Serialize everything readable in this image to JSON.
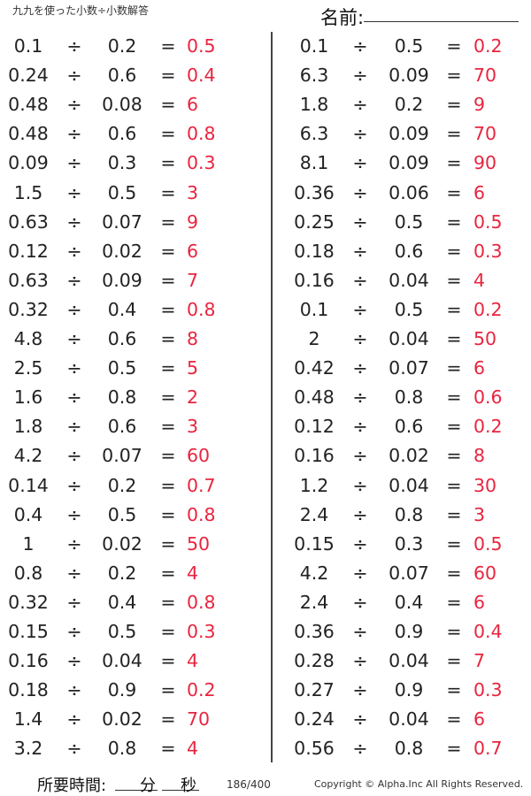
{
  "header": {
    "title": "九九を使った小数÷小数解答",
    "name_label": "名前:"
  },
  "left": [
    {
      "a": "0.1",
      "op": "÷",
      "b": "0.2",
      "eq": "=",
      "ans": "0.5"
    },
    {
      "a": "0.24",
      "op": "÷",
      "b": "0.6",
      "eq": "=",
      "ans": "0.4"
    },
    {
      "a": "0.48",
      "op": "÷",
      "b": "0.08",
      "eq": "=",
      "ans": "6"
    },
    {
      "a": "0.48",
      "op": "÷",
      "b": "0.6",
      "eq": "=",
      "ans": "0.8"
    },
    {
      "a": "0.09",
      "op": "÷",
      "b": "0.3",
      "eq": "=",
      "ans": "0.3"
    },
    {
      "a": "1.5",
      "op": "÷",
      "b": "0.5",
      "eq": "=",
      "ans": "3"
    },
    {
      "a": "0.63",
      "op": "÷",
      "b": "0.07",
      "eq": "=",
      "ans": "9"
    },
    {
      "a": "0.12",
      "op": "÷",
      "b": "0.02",
      "eq": "=",
      "ans": "6"
    },
    {
      "a": "0.63",
      "op": "÷",
      "b": "0.09",
      "eq": "=",
      "ans": "7"
    },
    {
      "a": "0.32",
      "op": "÷",
      "b": "0.4",
      "eq": "=",
      "ans": "0.8"
    },
    {
      "a": "4.8",
      "op": "÷",
      "b": "0.6",
      "eq": "=",
      "ans": "8"
    },
    {
      "a": "2.5",
      "op": "÷",
      "b": "0.5",
      "eq": "=",
      "ans": "5"
    },
    {
      "a": "1.6",
      "op": "÷",
      "b": "0.8",
      "eq": "=",
      "ans": "2"
    },
    {
      "a": "1.8",
      "op": "÷",
      "b": "0.6",
      "eq": "=",
      "ans": "3"
    },
    {
      "a": "4.2",
      "op": "÷",
      "b": "0.07",
      "eq": "=",
      "ans": "60"
    },
    {
      "a": "0.14",
      "op": "÷",
      "b": "0.2",
      "eq": "=",
      "ans": "0.7"
    },
    {
      "a": "0.4",
      "op": "÷",
      "b": "0.5",
      "eq": "=",
      "ans": "0.8"
    },
    {
      "a": "1",
      "op": "÷",
      "b": "0.02",
      "eq": "=",
      "ans": "50"
    },
    {
      "a": "0.8",
      "op": "÷",
      "b": "0.2",
      "eq": "=",
      "ans": "4"
    },
    {
      "a": "0.32",
      "op": "÷",
      "b": "0.4",
      "eq": "=",
      "ans": "0.8"
    },
    {
      "a": "0.15",
      "op": "÷",
      "b": "0.5",
      "eq": "=",
      "ans": "0.3"
    },
    {
      "a": "0.16",
      "op": "÷",
      "b": "0.04",
      "eq": "=",
      "ans": "4"
    },
    {
      "a": "0.18",
      "op": "÷",
      "b": "0.9",
      "eq": "=",
      "ans": "0.2"
    },
    {
      "a": "1.4",
      "op": "÷",
      "b": "0.02",
      "eq": "=",
      "ans": "70"
    },
    {
      "a": "3.2",
      "op": "÷",
      "b": "0.8",
      "eq": "=",
      "ans": "4"
    }
  ],
  "right": [
    {
      "a": "0.1",
      "op": "÷",
      "b": "0.5",
      "eq": "=",
      "ans": "0.2"
    },
    {
      "a": "6.3",
      "op": "÷",
      "b": "0.09",
      "eq": "=",
      "ans": "70"
    },
    {
      "a": "1.8",
      "op": "÷",
      "b": "0.2",
      "eq": "=",
      "ans": "9"
    },
    {
      "a": "6.3",
      "op": "÷",
      "b": "0.09",
      "eq": "=",
      "ans": "70"
    },
    {
      "a": "8.1",
      "op": "÷",
      "b": "0.09",
      "eq": "=",
      "ans": "90"
    },
    {
      "a": "0.36",
      "op": "÷",
      "b": "0.06",
      "eq": "=",
      "ans": "6"
    },
    {
      "a": "0.25",
      "op": "÷",
      "b": "0.5",
      "eq": "=",
      "ans": "0.5"
    },
    {
      "a": "0.18",
      "op": "÷",
      "b": "0.6",
      "eq": "=",
      "ans": "0.3"
    },
    {
      "a": "0.16",
      "op": "÷",
      "b": "0.04",
      "eq": "=",
      "ans": "4"
    },
    {
      "a": "0.1",
      "op": "÷",
      "b": "0.5",
      "eq": "=",
      "ans": "0.2"
    },
    {
      "a": "2",
      "op": "÷",
      "b": "0.04",
      "eq": "=",
      "ans": "50"
    },
    {
      "a": "0.42",
      "op": "÷",
      "b": "0.07",
      "eq": "=",
      "ans": "6"
    },
    {
      "a": "0.48",
      "op": "÷",
      "b": "0.8",
      "eq": "=",
      "ans": "0.6"
    },
    {
      "a": "0.12",
      "op": "÷",
      "b": "0.6",
      "eq": "=",
      "ans": "0.2"
    },
    {
      "a": "0.16",
      "op": "÷",
      "b": "0.02",
      "eq": "=",
      "ans": "8"
    },
    {
      "a": "1.2",
      "op": "÷",
      "b": "0.04",
      "eq": "=",
      "ans": "30"
    },
    {
      "a": "2.4",
      "op": "÷",
      "b": "0.8",
      "eq": "=",
      "ans": "3"
    },
    {
      "a": "0.15",
      "op": "÷",
      "b": "0.3",
      "eq": "=",
      "ans": "0.5"
    },
    {
      "a": "4.2",
      "op": "÷",
      "b": "0.07",
      "eq": "=",
      "ans": "60"
    },
    {
      "a": "2.4",
      "op": "÷",
      "b": "0.4",
      "eq": "=",
      "ans": "6"
    },
    {
      "a": "0.36",
      "op": "÷",
      "b": "0.9",
      "eq": "=",
      "ans": "0.4"
    },
    {
      "a": "0.28",
      "op": "÷",
      "b": "0.04",
      "eq": "=",
      "ans": "7"
    },
    {
      "a": "0.27",
      "op": "÷",
      "b": "0.9",
      "eq": "=",
      "ans": "0.3"
    },
    {
      "a": "0.24",
      "op": "÷",
      "b": "0.04",
      "eq": "=",
      "ans": "6"
    },
    {
      "a": "0.56",
      "op": "÷",
      "b": "0.8",
      "eq": "=",
      "ans": "0.7"
    }
  ],
  "footer": {
    "time_label": "所要時間:",
    "minutes_unit": "分",
    "seconds_unit": "秒",
    "page": "186/400",
    "copyright": "Copyright © Alpha.Inc All Rights Reserved."
  },
  "colors": {
    "answer": "#e8253f"
  }
}
